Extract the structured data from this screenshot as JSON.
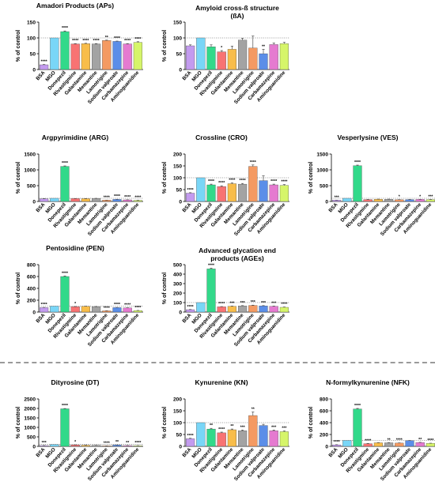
{
  "figure": {
    "categories": [
      "BSA",
      "MGO",
      "Donepezil",
      "Rivastigmine",
      "Galantamine",
      "Memantine",
      "Lamotrigine",
      "Sodium valproate",
      "Carbamazepine",
      "Aminoguanidine"
    ],
    "bar_colors": [
      "#c39bef",
      "#79d6f7",
      "#32d98a",
      "#f87373",
      "#f8bd4a",
      "#a3a3a3",
      "#f49a62",
      "#5b8ee8",
      "#e57ad0",
      "#d6f56a"
    ],
    "ylabel": "% of control",
    "reference_line_value": 100
  },
  "chart_data": [
    {
      "type": "bar",
      "title": "Amadori Products (APs)",
      "ylabel": "% of control",
      "ylim": [
        0,
        150
      ],
      "yticks": [
        0,
        50,
        100,
        150
      ],
      "categories": [
        "BSA",
        "MGO",
        "Donepezil",
        "Rivastigmine",
        "Galantamine",
        "Memantine",
        "Lamotrigine",
        "Sodium valproate",
        "Carbamazepine",
        "Aminoguanidine"
      ],
      "values": [
        15,
        100,
        120,
        81,
        82,
        81,
        92,
        89,
        81,
        86
      ],
      "errors": [
        1,
        0,
        2,
        1,
        1,
        1,
        1,
        1,
        1,
        2
      ],
      "significance": [
        "****",
        "",
        "****",
        "****",
        "****",
        "****",
        "**",
        "****",
        "****",
        "****"
      ]
    },
    {
      "type": "bar",
      "title": "Amyloid cross-ß structure (ßA)",
      "ylabel": "% of control",
      "ylim": [
        0,
        150
      ],
      "yticks": [
        0,
        50,
        100,
        150
      ],
      "categories": [
        "BSA",
        "MGO",
        "Donepezil",
        "Rivastigmine",
        "Galantamine",
        "Memantine",
        "Lamotrigine",
        "Sodium valproate",
        "Carbamazepine",
        "Aminoguanidine"
      ],
      "values": [
        75,
        100,
        72,
        56,
        64,
        93,
        68,
        50,
        79,
        82
      ],
      "errors": [
        3,
        0,
        6,
        4,
        10,
        6,
        38,
        14,
        5,
        4
      ],
      "significance": [
        "",
        "",
        "",
        "*",
        "",
        "",
        "",
        "**",
        "",
        ""
      ]
    },
    {
      "type": "bar",
      "title": "Argpyrimidine (ARG)",
      "ylabel": "% of control",
      "ylim": [
        0,
        1500
      ],
      "yticks": [
        0,
        500,
        1000,
        1500
      ],
      "categories": [
        "BSA",
        "MGO",
        "Donepezil",
        "Rivastigmine",
        "Galantamine",
        "Memantine",
        "Lamotrigine",
        "Sodium valproate",
        "Carbamazepine",
        "Aminoguanidine"
      ],
      "values": [
        85,
        100,
        1110,
        90,
        88,
        95,
        40,
        65,
        50,
        35
      ],
      "errors": [
        3,
        0,
        15,
        3,
        3,
        3,
        3,
        4,
        3,
        3
      ],
      "significance": [
        "",
        "",
        "****",
        "",
        "",
        "",
        "****",
        "****",
        "****",
        "****"
      ]
    },
    {
      "type": "bar",
      "title": "Crossline (CRO)",
      "ylabel": "% of control",
      "ylim": [
        0,
        200
      ],
      "yticks": [
        0,
        50,
        100,
        150,
        200
      ],
      "categories": [
        "BSA",
        "MGO",
        "Donepezil",
        "Rivastigmine",
        "Galantamine",
        "Memantine",
        "Lamotrigine",
        "Sodium valproate",
        "Carbamazepine",
        "Aminoguanidine"
      ],
      "values": [
        35,
        100,
        70,
        63,
        75,
        73,
        148,
        88,
        70,
        68
      ],
      "errors": [
        2,
        0,
        3,
        3,
        3,
        3,
        6,
        20,
        3,
        3
      ],
      "significance": [
        "****",
        "",
        "****",
        "****",
        "****",
        "****",
        "****",
        "",
        "****",
        "****"
      ]
    },
    {
      "type": "bar",
      "title": "Vesperlysine (VES)",
      "ylabel": "% of control",
      "ylim": [
        0,
        1500
      ],
      "yticks": [
        0,
        500,
        1000,
        1500
      ],
      "categories": [
        "BSA",
        "MGO",
        "Donepezil",
        "Rivastigmine",
        "Galantamine",
        "Memantine",
        "Lamotrigine",
        "Sodium valproate",
        "Carbamazepine",
        "Aminoguanidine"
      ],
      "values": [
        40,
        100,
        1130,
        60,
        70,
        70,
        55,
        60,
        65,
        60
      ],
      "errors": [
        3,
        0,
        20,
        3,
        3,
        3,
        3,
        3,
        3,
        3
      ],
      "significance": [
        "***",
        "",
        "****",
        "",
        "",
        "",
        "*",
        "",
        "*",
        "***"
      ]
    },
    {
      "type": "bar",
      "title": "Pentosidine (PEN)",
      "ylabel": "% of control",
      "ylim": [
        0,
        800
      ],
      "yticks": [
        0,
        200,
        400,
        600,
        800
      ],
      "categories": [
        "BSA",
        "MGO",
        "Donepezil",
        "Rivastigmine",
        "Galantamine",
        "Memantine",
        "Lamotrigine",
        "Sodium valproate",
        "Carbamazepine",
        "Aminoguanidine"
      ],
      "values": [
        75,
        100,
        600,
        90,
        95,
        90,
        20,
        75,
        70,
        25
      ],
      "errors": [
        3,
        0,
        10,
        3,
        3,
        3,
        2,
        3,
        3,
        2
      ],
      "significance": [
        "****",
        "",
        "****",
        "*",
        "",
        "",
        "****",
        "****",
        "****",
        "****"
      ]
    },
    {
      "type": "bar",
      "title": "Advanced glycation end products (AGEs)",
      "ylabel": "% of control",
      "ylim": [
        0,
        500
      ],
      "yticks": [
        0,
        100,
        200,
        300,
        400,
        500
      ],
      "categories": [
        "BSA",
        "MGO",
        "Donepezil",
        "Rivastigmine",
        "Galantamine",
        "Memantine",
        "Lamotrigine",
        "Sodium valproate",
        "Carbamazepine",
        "Aminoguanidine"
      ],
      "values": [
        25,
        100,
        455,
        55,
        60,
        65,
        70,
        65,
        60,
        50
      ],
      "errors": [
        2,
        0,
        8,
        3,
        3,
        3,
        3,
        3,
        3,
        3
      ],
      "significance": [
        "****",
        "",
        "****",
        "****",
        "***",
        "***",
        "***",
        "***",
        "***",
        "****"
      ]
    },
    {
      "type": "bar",
      "title": "Dityrosine (DT)",
      "ylabel": "% of control",
      "ylim": [
        0,
        2500
      ],
      "yticks": [
        0,
        500,
        1000,
        1500,
        2000,
        2500
      ],
      "categories": [
        "BSA",
        "MGO",
        "Donepezil",
        "Rivastigmine",
        "Galantamine",
        "Memantine",
        "Lamotrigine",
        "Sodium valproate",
        "Carbamazepine",
        "Aminoguanidine"
      ],
      "values": [
        40,
        100,
        1980,
        75,
        60,
        50,
        25,
        70,
        40,
        35
      ],
      "errors": [
        3,
        0,
        15,
        3,
        3,
        3,
        2,
        3,
        3,
        3
      ],
      "significance": [
        "***",
        "",
        "****",
        "*",
        "",
        "",
        "****",
        "**",
        "**",
        "****"
      ]
    },
    {
      "type": "bar",
      "title": "Kynurenine (KN)",
      "ylabel": "% of control",
      "ylim": [
        0,
        200
      ],
      "yticks": [
        0,
        50,
        100,
        150,
        200
      ],
      "categories": [
        "BSA",
        "MGO",
        "Donepezil",
        "Rivastigmine",
        "Galantamine",
        "Memantine",
        "Lamotrigine",
        "Sodium valproate",
        "Carbamazepine",
        "Aminoguanidine"
      ],
      "values": [
        32,
        100,
        73,
        57,
        70,
        66,
        130,
        88,
        66,
        62
      ],
      "errors": [
        2,
        0,
        3,
        3,
        3,
        3,
        15,
        5,
        3,
        3
      ],
      "significance": [
        "****",
        "",
        "**",
        "****",
        "**",
        "***",
        "**",
        "",
        "***",
        "***"
      ]
    },
    {
      "type": "bar",
      "title": "N-formylkynurenine (NFK)",
      "ylabel": "% of control",
      "ylim": [
        0,
        800
      ],
      "yticks": [
        0,
        200,
        400,
        600,
        800
      ],
      "categories": [
        "BSA",
        "MGO",
        "Donepezil",
        "Rivastigmine",
        "Galantamine",
        "Memantine",
        "Lamotrigine",
        "Sodium valproate",
        "Carbamazepine",
        "Aminoguanidine"
      ],
      "values": [
        25,
        100,
        630,
        45,
        60,
        60,
        55,
        95,
        65,
        50
      ],
      "errors": [
        3,
        0,
        10,
        3,
        3,
        3,
        3,
        3,
        3,
        3
      ],
      "significance": [
        "****",
        "",
        "****",
        "****",
        "",
        "**",
        "****",
        "",
        "**",
        "****"
      ]
    }
  ]
}
